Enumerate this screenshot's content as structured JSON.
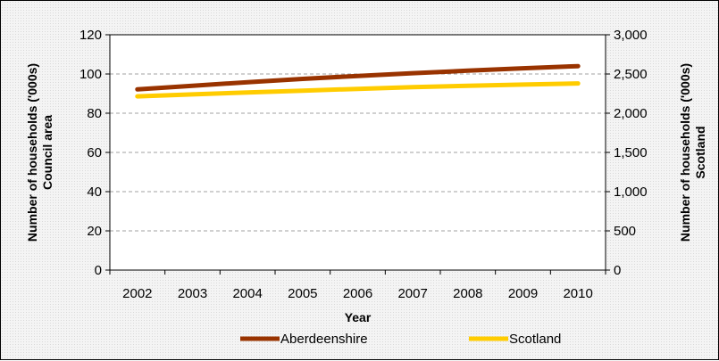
{
  "chart_data": {
    "type": "line",
    "categories": [
      "2002",
      "2003",
      "2004",
      "2005",
      "2006",
      "2007",
      "2008",
      "2009",
      "2010"
    ],
    "xlabel": "Year",
    "ylabel_left": [
      "Number of households ('000s)",
      "Council area"
    ],
    "ylabel_right": [
      "Number of households ('000s)",
      "Scotland"
    ],
    "y_left": {
      "min": 0,
      "max": 120,
      "step": 20,
      "tick_labels": [
        "0",
        "20",
        "40",
        "60",
        "80",
        "100",
        "120"
      ]
    },
    "y_right": {
      "min": 0,
      "max": 3000,
      "step": 500,
      "tick_labels": [
        "0",
        "500",
        "1,000",
        "1,500",
        "2,000",
        "2,500",
        "3,000"
      ]
    },
    "grid": true,
    "legend_position": "bottom",
    "series": [
      {
        "name": "Aberdeenshire",
        "axis": "left",
        "color": "#993300",
        "values": [
          92.2,
          94.0,
          95.8,
          97.5,
          99.0,
          100.4,
          101.7,
          102.9,
          104.0
        ]
      },
      {
        "name": "Scotland",
        "axis": "right",
        "color": "#ffcc00",
        "values": [
          2215,
          2240,
          2265,
          2288,
          2310,
          2332,
          2350,
          2365,
          2380
        ]
      }
    ]
  }
}
